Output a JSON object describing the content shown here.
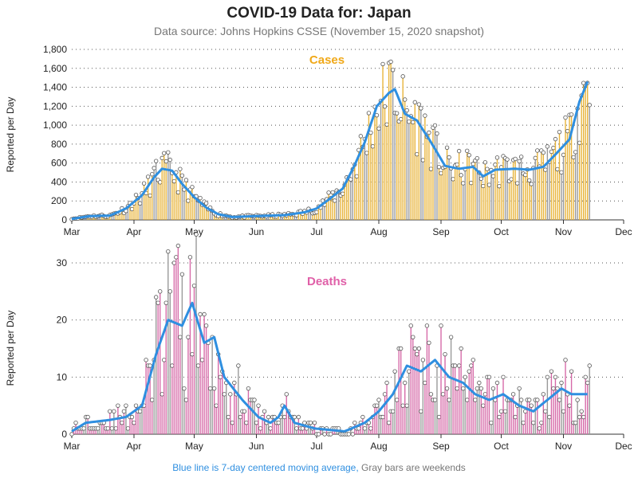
{
  "title": "COVID-19 Data for: Japan",
  "subtitle": "Data source: Johns Hopkins CSSE (November 15, 2020 snapshot)",
  "footer": {
    "blue_text": "Blue line is 7-day centered moving average,",
    "gray_text": "Gray bars are weekends"
  },
  "colors": {
    "cases_bar": "#e8b43a",
    "deaths_bar": "#d66aa8",
    "weekend_bar": "#999999",
    "moving_avg": "#2f8fe0",
    "cases_title": "#f0a818",
    "deaths_title": "#e060a8"
  },
  "chart_data": [
    {
      "type": "bar",
      "title": "Cases",
      "ylabel": "Reported per Day",
      "xlabel": "",
      "ylim": [
        0,
        1800
      ],
      "yticks": [
        0,
        200,
        400,
        600,
        800,
        1000,
        1200,
        1400,
        1600,
        1800
      ],
      "ytick_labels": [
        "0",
        "200",
        "400",
        "600",
        "800",
        "1,000",
        "1,200",
        "1,400",
        "1,600",
        "1,800"
      ],
      "x_tick_labels": [
        "Mar",
        "Apr",
        "May",
        "Jun",
        "Jul",
        "Aug",
        "Sep",
        "Oct",
        "Nov",
        "Dec"
      ],
      "grid": "horizontal dotted",
      "anchors": [
        [
          "2020-03-01",
          10
        ],
        [
          "2020-03-10",
          40
        ],
        [
          "2020-03-20",
          45
        ],
        [
          "2020-03-28",
          120
        ],
        [
          "2020-04-05",
          260
        ],
        [
          "2020-04-11",
          450
        ],
        [
          "2020-04-15",
          540
        ],
        [
          "2020-04-20",
          520
        ],
        [
          "2020-04-25",
          380
        ],
        [
          "2020-05-01",
          240
        ],
        [
          "2020-05-07",
          130
        ],
        [
          "2020-05-13",
          60
        ],
        [
          "2020-05-20",
          30
        ],
        [
          "2020-06-01",
          40
        ],
        [
          "2020-06-15",
          50
        ],
        [
          "2020-06-25",
          80
        ],
        [
          "2020-07-01",
          120
        ],
        [
          "2020-07-08",
          230
        ],
        [
          "2020-07-14",
          330
        ],
        [
          "2020-07-20",
          580
        ],
        [
          "2020-07-25",
          820
        ],
        [
          "2020-07-31",
          1200
        ],
        [
          "2020-08-06",
          1340
        ],
        [
          "2020-08-09",
          1380
        ],
        [
          "2020-08-14",
          1120
        ],
        [
          "2020-08-20",
          1050
        ],
        [
          "2020-08-27",
          820
        ],
        [
          "2020-09-03",
          570
        ],
        [
          "2020-09-10",
          540
        ],
        [
          "2020-09-17",
          560
        ],
        [
          "2020-09-22",
          460
        ],
        [
          "2020-09-28",
          530
        ],
        [
          "2020-10-08",
          540
        ],
        [
          "2020-10-15",
          530
        ],
        [
          "2020-10-22",
          560
        ],
        [
          "2020-10-28",
          690
        ],
        [
          "2020-11-04",
          850
        ],
        [
          "2020-11-09",
          1250
        ],
        [
          "2020-11-13",
          1460
        ]
      ],
      "series": [
        {
          "name": "Reported per Day",
          "style": "bars"
        },
        {
          "name": "7-day centered moving average",
          "style": "line"
        }
      ]
    },
    {
      "type": "bar",
      "title": "Deaths",
      "ylabel": "Reported per Day",
      "xlabel": "",
      "ylim": [
        0,
        30
      ],
      "yticks": [
        0,
        10,
        20,
        30
      ],
      "ytick_labels": [
        "0",
        "10",
        "20",
        "30"
      ],
      "x_tick_labels": [
        "Mar",
        "Apr",
        "May",
        "Jun",
        "Jul",
        "Aug",
        "Sep",
        "Oct",
        "Nov",
        "Dec"
      ],
      "grid": "horizontal dotted",
      "anchors": [
        [
          "2020-03-01",
          0.5
        ],
        [
          "2020-03-08",
          2
        ],
        [
          "2020-03-20",
          2.5
        ],
        [
          "2020-03-28",
          3
        ],
        [
          "2020-04-05",
          5
        ],
        [
          "2020-04-12",
          14
        ],
        [
          "2020-04-18",
          20
        ],
        [
          "2020-04-25",
          19
        ],
        [
          "2020-04-30",
          23
        ],
        [
          "2020-05-06",
          16
        ],
        [
          "2020-05-11",
          17
        ],
        [
          "2020-05-16",
          10
        ],
        [
          "2020-05-25",
          6
        ],
        [
          "2020-06-02",
          3
        ],
        [
          "2020-06-08",
          2
        ],
        [
          "2020-06-12",
          3
        ],
        [
          "2020-06-15",
          5
        ],
        [
          "2020-06-20",
          2
        ],
        [
          "2020-06-30",
          1
        ],
        [
          "2020-07-15",
          0.5
        ],
        [
          "2020-07-25",
          2
        ],
        [
          "2020-08-01",
          4
        ],
        [
          "2020-08-08",
          7
        ],
        [
          "2020-08-15",
          12
        ],
        [
          "2020-08-22",
          11
        ],
        [
          "2020-08-29",
          13
        ],
        [
          "2020-09-05",
          10
        ],
        [
          "2020-09-12",
          9
        ],
        [
          "2020-09-18",
          7
        ],
        [
          "2020-09-25",
          6
        ],
        [
          "2020-10-02",
          7
        ],
        [
          "2020-10-10",
          5
        ],
        [
          "2020-10-17",
          4
        ],
        [
          "2020-10-24",
          6
        ],
        [
          "2020-10-31",
          8
        ],
        [
          "2020-11-05",
          7
        ],
        [
          "2020-11-13",
          7
        ]
      ],
      "series": [
        {
          "name": "Reported per Day",
          "style": "bars"
        },
        {
          "name": "7-day centered moving average",
          "style": "line"
        }
      ]
    }
  ]
}
